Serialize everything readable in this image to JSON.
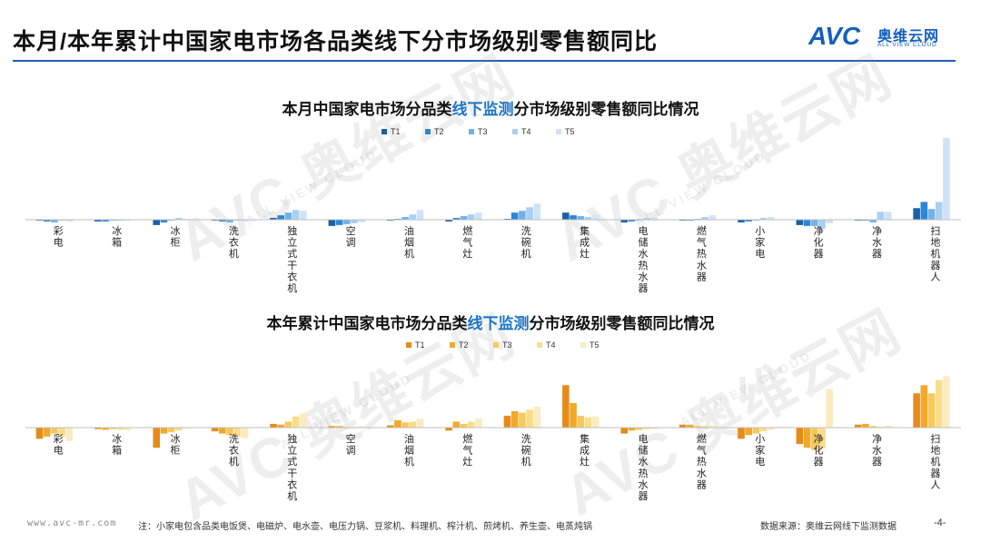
{
  "page": {
    "title": "本月/本年累计中国家电市场各品类线下分市场级别零售额同比",
    "logo_cn": "奥维云网",
    "logo_en": "ALL VIEW CLOUD",
    "logo_mark": "AVC",
    "watermark_text": "AVC 奥维云网",
    "watermark_sub": "ALL VIEW CLOUD",
    "footer_site": "www.avc-mr.com",
    "footer_note": "注：小家电包含品类电饭煲、电磁炉、电水壶、电压力锅、豆浆机、料理机、榨汁机、煎烤机、养生壶、电蒸炖锅",
    "footer_source": "数据来源：奥维云网线下监测数据",
    "page_number": "-4-"
  },
  "chart_data": [
    {
      "type": "bar",
      "title_pre": "本月中国家电市场分品类",
      "title_hl": "线下监测",
      "title_post": "分市场级别零售额同比情况",
      "legend_position": "top",
      "categories": [
        "彩电",
        "冰箱",
        "冰柜",
        "洗衣机",
        "独立式干衣机",
        "空调",
        "油烟机",
        "燃气灶",
        "洗碗机",
        "集成灶",
        "电储水热水器",
        "燃气热水器",
        "小家电",
        "净化器",
        "净水器",
        "扫地机器人"
      ],
      "series": [
        {
          "name": "T1",
          "color": "#1a5fa8",
          "values": [
            -1,
            -2,
            -6,
            -1,
            2,
            -7,
            -1,
            -2,
            1,
            8,
            -3,
            -1,
            -3,
            -6,
            -1,
            13
          ]
        },
        {
          "name": "T2",
          "color": "#2e86d6",
          "values": [
            -2,
            -2,
            -3,
            -2,
            5,
            -6,
            1,
            2,
            8,
            5,
            -2,
            -1,
            -2,
            -7,
            -1,
            20
          ]
        },
        {
          "name": "T3",
          "color": "#6fb2e8",
          "values": [
            -3,
            -1,
            -1,
            -3,
            8,
            -5,
            3,
            4,
            10,
            4,
            -1,
            1,
            -1,
            -7,
            -3,
            12
          ]
        },
        {
          "name": "T4",
          "color": "#a9d0f3",
          "values": [
            -1,
            -1,
            2,
            -1,
            11,
            -4,
            6,
            6,
            14,
            3,
            2,
            3,
            2,
            -10,
            9,
            20
          ]
        },
        {
          "name": "T5",
          "color": "#cfe3f8",
          "values": [
            -2,
            -1,
            1,
            -2,
            10,
            -3,
            11,
            8,
            18,
            5,
            3,
            5,
            3,
            -4,
            9,
            92
          ]
        }
      ]
    },
    {
      "type": "bar",
      "title_pre": "本年累计中国家电市场分品类",
      "title_hl": "线下监测",
      "title_post": "分市场级别零售额同比情况",
      "legend_position": "top",
      "categories": [
        "彩电",
        "冰箱",
        "冰柜",
        "洗衣机",
        "独立式干衣机",
        "空调",
        "油烟机",
        "燃气灶",
        "洗碗机",
        "集成灶",
        "电储水热水器",
        "燃气热水器",
        "小家电",
        "净化器",
        "净水器",
        "扫地机器人"
      ],
      "series": [
        {
          "name": "T1",
          "color": "#e68b1a",
          "values": [
            -15,
            -2,
            -27,
            -5,
            5,
            2,
            3,
            -4,
            16,
            57,
            -8,
            4,
            -15,
            -22,
            4,
            46
          ]
        },
        {
          "name": "T2",
          "color": "#f2a92a",
          "values": [
            -12,
            -3,
            -8,
            -8,
            4,
            2,
            10,
            8,
            22,
            33,
            -4,
            4,
            -10,
            -27,
            5,
            57
          ]
        },
        {
          "name": "T3",
          "color": "#f7c95a",
          "values": [
            -8,
            -2,
            -6,
            -10,
            8,
            -1,
            7,
            5,
            20,
            16,
            -3,
            2,
            -8,
            -30,
            2,
            46
          ]
        },
        {
          "name": "T4",
          "color": "#fadc8a",
          "values": [
            -12,
            -3,
            -4,
            -12,
            15,
            1,
            8,
            8,
            24,
            14,
            -2,
            2,
            -5,
            -28,
            1,
            64
          ]
        },
        {
          "name": "T5",
          "color": "#fcebc0",
          "values": [
            -18,
            -4,
            -1,
            -14,
            19,
            2,
            12,
            12,
            28,
            15,
            -2,
            3,
            -3,
            52,
            3,
            69
          ]
        }
      ]
    }
  ]
}
